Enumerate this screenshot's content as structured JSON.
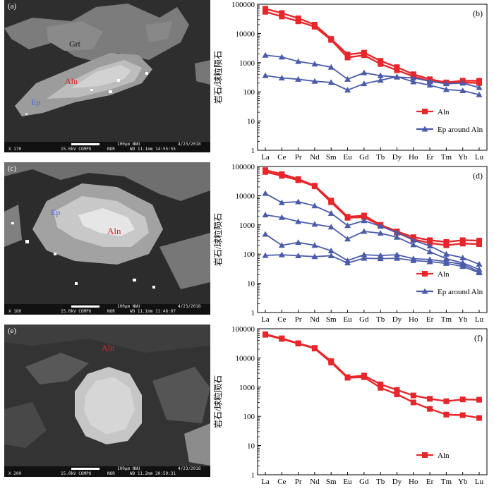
{
  "micrographs": [
    {
      "panel_label": "(a)",
      "mineral_labels": {
        "grt": "Grt",
        "aln": "Aln",
        "ep": "Ep"
      },
      "info": {
        "magnification": "X 170",
        "voltage": "15.0kV COMPO",
        "mode": "NOR",
        "wd": "WD 11.1mm 14:55:55",
        "scale": "100μm NWU",
        "date": "4/23/2018"
      }
    },
    {
      "panel_label": "(c)",
      "mineral_labels": {
        "ep": "Ep",
        "aln": "Aln"
      },
      "info": {
        "magnification": "X 180",
        "voltage": "15.0kV COMPO",
        "mode": "NOR",
        "wd": "WD 11.1mm 11:46:07",
        "scale": "100μm NWU",
        "date": "4/23/2018"
      }
    },
    {
      "panel_label": "(e)",
      "mineral_labels": {
        "aln": "Aln"
      },
      "info": {
        "magnification": "X 200",
        "voltage": "15.0kV COMPO",
        "mode": "NOR",
        "wd": "WD 11.2mm 20:59:31",
        "scale": "100μm NWU",
        "date": "4/23/2018"
      }
    }
  ],
  "colors": {
    "aln": "#e8262a",
    "ep": "#4a5bab",
    "aln_label": "#d9262b",
    "ep_label": "#4b6ad0"
  },
  "chart_data": [
    {
      "type": "line",
      "panel_label": "(b)",
      "ylabel": "岩石/球粒陨石",
      "categories": [
        "La",
        "Ce",
        "Pr",
        "Nd",
        "Sm",
        "Eu",
        "Gd",
        "Tb",
        "Dy",
        "Ho",
        "Er",
        "Tm",
        "Yb",
        "Lu"
      ],
      "ylim": [
        1,
        100000
      ],
      "yscale": "log",
      "yticks": [
        "1",
        "10",
        "100",
        "1000",
        "10000",
        "100000"
      ],
      "legend": [
        {
          "label": "Aln",
          "group": "aln"
        },
        {
          "label": "Ep around Aln",
          "group": "ep"
        }
      ],
      "legend_position": "bottom-right",
      "series": [
        {
          "name": "Aln",
          "group": "aln",
          "values": [
            70000,
            50000,
            33000,
            20000,
            6500,
            1900,
            2200,
            1150,
            700,
            400,
            270,
            210,
            240,
            240
          ]
        },
        {
          "name": "Aln",
          "group": "aln",
          "values": [
            55000,
            38000,
            26000,
            17000,
            6000,
            1500,
            1800,
            900,
            550,
            340,
            230,
            200,
            210,
            200
          ]
        },
        {
          "name": "Ep around Aln",
          "group": "ep",
          "values": [
            1800,
            1550,
            1100,
            900,
            700,
            270,
            450,
            360,
            320,
            300,
            230,
            190,
            200,
            140
          ]
        },
        {
          "name": "Ep around Aln",
          "group": "ep",
          "values": [
            360,
            300,
            270,
            230,
            210,
            115,
            190,
            250,
            330,
            220,
            170,
            120,
            110,
            80
          ]
        }
      ]
    },
    {
      "type": "line",
      "panel_label": "(d)",
      "ylabel": "岩石/球粒陨石",
      "categories": [
        "La",
        "Ce",
        "Pr",
        "Nd",
        "Sm",
        "Eu",
        "Gd",
        "Tb",
        "Dy",
        "Ho",
        "Er",
        "Tm",
        "Yb",
        "Lu"
      ],
      "ylim": [
        1,
        100000
      ],
      "yscale": "log",
      "yticks": [
        "1",
        "10",
        "100",
        "1000",
        "10000",
        "100000"
      ],
      "legend": [
        {
          "label": "Aln",
          "group": "aln"
        },
        {
          "label": "Ep around Aln",
          "group": "ep"
        }
      ],
      "legend_position": "bottom-right",
      "series": [
        {
          "name": "Aln",
          "group": "aln",
          "values": [
            75000,
            55000,
            37000,
            22000,
            6800,
            1900,
            2100,
            1000,
            600,
            380,
            300,
            260,
            300,
            290
          ]
        },
        {
          "name": "Aln",
          "group": "aln",
          "values": [
            65000,
            48000,
            34000,
            21000,
            6000,
            1750,
            1850,
            950,
            540,
            320,
            240,
            200,
            230,
            220
          ]
        },
        {
          "name": "Ep around Aln",
          "group": "ep",
          "values": [
            12000,
            5800,
            6200,
            4500,
            2500,
            950,
            1400,
            900,
            550,
            300,
            190,
            100,
            75,
            45
          ]
        },
        {
          "name": "Ep around Aln",
          "group": "ep",
          "values": [
            2200,
            1800,
            1300,
            1050,
            850,
            330,
            600,
            520,
            380,
            210,
            120,
            70,
            50,
            30
          ]
        },
        {
          "name": "Ep around Aln",
          "group": "ep",
          "values": [
            480,
            200,
            250,
            200,
            130,
            60,
            95,
            90,
            95,
            70,
            65,
            55,
            45,
            25
          ]
        },
        {
          "name": "Ep around Aln",
          "group": "ep",
          "values": [
            90,
            95,
            88,
            82,
            88,
            50,
            72,
            70,
            72,
            60,
            55,
            48,
            38,
            23
          ]
        }
      ]
    },
    {
      "type": "line",
      "panel_label": "(f)",
      "ylabel": "岩石/球粒陨石",
      "categories": [
        "La",
        "Ce",
        "Pr",
        "Nd",
        "Sm",
        "Eu",
        "Gd",
        "Tb",
        "Dy",
        "Ho",
        "Er",
        "Tm",
        "Yb",
        "Lu"
      ],
      "ylim": [
        1,
        100000
      ],
      "yscale": "log",
      "yticks": [
        "1",
        "10",
        "100",
        "1000",
        "10000",
        "100000"
      ],
      "legend": [
        {
          "label": "Aln",
          "group": "aln"
        }
      ],
      "legend_position": "bottom-right",
      "series": [
        {
          "name": "Aln",
          "group": "aln",
          "values": [
            65000,
            47000,
            32000,
            22000,
            7800,
            2200,
            2500,
            1250,
            800,
            520,
            400,
            330,
            380,
            370
          ]
        },
        {
          "name": "Aln",
          "group": "aln",
          "values": [
            62000,
            45000,
            31000,
            21000,
            7000,
            2100,
            2200,
            950,
            570,
            300,
            180,
            115,
            110,
            88
          ]
        }
      ]
    }
  ]
}
